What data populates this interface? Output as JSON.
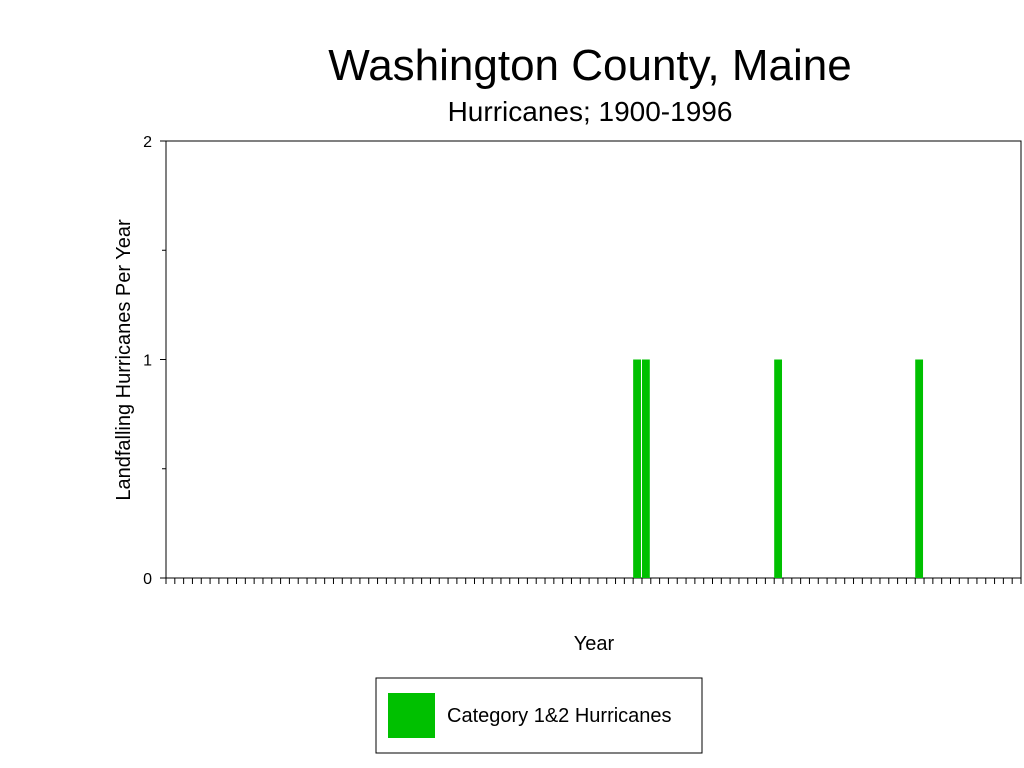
{
  "chart_data": {
    "type": "bar",
    "title": "Washington County, Maine",
    "subtitle": "Hurricanes;  1900-1996",
    "xlabel": "Year",
    "ylabel": "Landfalling Hurricanes Per Year",
    "x_range": [
      1900,
      1996
    ],
    "ylim": [
      0,
      2
    ],
    "y_ticks": [
      {
        "value": 0,
        "label": "0"
      },
      {
        "value": 1,
        "label": "1"
      },
      {
        "value": 2,
        "label": "2"
      }
    ],
    "y_minor_ticks": [
      0.5,
      1.5
    ],
    "grid": false,
    "legend_position": "bottom-center",
    "series": [
      {
        "name": "Category 1&2 Hurricanes",
        "color": "#00c000",
        "points": [
          {
            "x": 1953,
            "y": 1
          },
          {
            "x": 1954,
            "y": 1
          },
          {
            "x": 1969,
            "y": 1
          },
          {
            "x": 1985,
            "y": 1
          }
        ]
      }
    ]
  }
}
